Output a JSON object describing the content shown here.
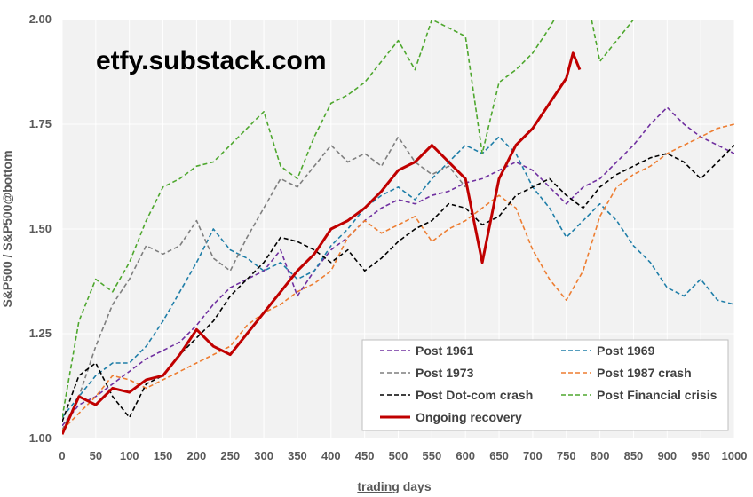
{
  "watermark": "etfy.substack.com",
  "chart_data": {
    "type": "line",
    "xlabel_prefix": "trading",
    "xlabel_suffix": " days",
    "ylabel": "S&P500 / S&P500@bottom",
    "xlim": [
      0,
      1000
    ],
    "ylim": [
      1.0,
      2.0
    ],
    "x_ticks": [
      0,
      50,
      100,
      150,
      200,
      250,
      300,
      350,
      400,
      450,
      500,
      550,
      600,
      650,
      700,
      750,
      800,
      850,
      900,
      950,
      1000
    ],
    "y_ticks": [
      "1.00",
      "1.25",
      "1.50",
      "1.75",
      "2.00"
    ],
    "grid": "horizontal",
    "background": "#f2f2f2",
    "legend_position": "bottom-right",
    "series": [
      {
        "name": "Post 1961",
        "color": "#7030a0",
        "style": "dashed",
        "width": 1.6,
        "x": [
          0,
          25,
          50,
          75,
          100,
          125,
          150,
          175,
          200,
          225,
          250,
          275,
          300,
          325,
          350,
          375,
          400,
          425,
          450,
          475,
          500,
          525,
          550,
          575,
          600,
          625,
          650,
          675,
          700,
          725,
          750,
          775,
          800,
          825,
          850,
          875,
          900,
          925,
          950,
          975,
          1000
        ],
        "y": [
          1.03,
          1.08,
          1.1,
          1.13,
          1.16,
          1.19,
          1.21,
          1.23,
          1.27,
          1.32,
          1.36,
          1.38,
          1.4,
          1.45,
          1.34,
          1.4,
          1.45,
          1.48,
          1.52,
          1.55,
          1.57,
          1.56,
          1.58,
          1.59,
          1.61,
          1.62,
          1.64,
          1.66,
          1.64,
          1.6,
          1.56,
          1.6,
          1.62,
          1.66,
          1.7,
          1.75,
          1.79,
          1.75,
          1.72,
          1.7,
          1.68
        ]
      },
      {
        "name": "Post 1969",
        "color": "#1f7ea8",
        "style": "dashed",
        "width": 1.6,
        "x": [
          0,
          25,
          50,
          75,
          100,
          125,
          150,
          175,
          200,
          225,
          250,
          275,
          300,
          325,
          350,
          375,
          400,
          425,
          450,
          475,
          500,
          525,
          550,
          575,
          600,
          625,
          650,
          675,
          700,
          725,
          750,
          775,
          800,
          825,
          850,
          875,
          900,
          925,
          950,
          975,
          1000
        ],
        "y": [
          1.05,
          1.1,
          1.15,
          1.18,
          1.18,
          1.22,
          1.28,
          1.35,
          1.42,
          1.5,
          1.45,
          1.43,
          1.4,
          1.42,
          1.38,
          1.4,
          1.46,
          1.5,
          1.55,
          1.58,
          1.6,
          1.57,
          1.62,
          1.66,
          1.7,
          1.68,
          1.72,
          1.68,
          1.6,
          1.55,
          1.48,
          1.52,
          1.56,
          1.52,
          1.46,
          1.42,
          1.36,
          1.34,
          1.38,
          1.33,
          1.32
        ]
      },
      {
        "name": "Post 1973",
        "color": "#7f7f7f",
        "style": "dashed",
        "width": 1.6,
        "x": [
          0,
          25,
          50,
          75,
          100,
          125,
          150,
          175,
          200,
          225,
          250,
          275,
          300,
          325,
          350,
          375,
          400,
          425,
          450,
          475,
          500,
          525,
          550,
          575,
          600
        ],
        "y": [
          1.02,
          1.1,
          1.22,
          1.32,
          1.38,
          1.46,
          1.44,
          1.46,
          1.52,
          1.43,
          1.4,
          1.48,
          1.55,
          1.62,
          1.6,
          1.65,
          1.7,
          1.66,
          1.68,
          1.65,
          1.72,
          1.66,
          1.63,
          1.65,
          1.6
        ]
      },
      {
        "name": "Post 1987 crash",
        "color": "#ed7d31",
        "style": "dashed",
        "width": 1.6,
        "x": [
          0,
          25,
          50,
          75,
          100,
          125,
          150,
          175,
          200,
          225,
          250,
          275,
          300,
          325,
          350,
          375,
          400,
          425,
          450,
          475,
          500,
          525,
          550,
          575,
          600,
          625,
          650,
          675,
          700,
          725,
          750,
          775,
          800,
          825,
          850,
          875,
          900,
          925,
          950,
          975,
          1000
        ],
        "y": [
          1.02,
          1.06,
          1.1,
          1.15,
          1.14,
          1.12,
          1.14,
          1.16,
          1.18,
          1.2,
          1.22,
          1.27,
          1.3,
          1.32,
          1.35,
          1.37,
          1.4,
          1.48,
          1.52,
          1.49,
          1.51,
          1.53,
          1.47,
          1.5,
          1.52,
          1.55,
          1.58,
          1.55,
          1.45,
          1.38,
          1.33,
          1.4,
          1.53,
          1.6,
          1.63,
          1.65,
          1.68,
          1.7,
          1.72,
          1.74,
          1.75
        ]
      },
      {
        "name": "Post Dot-com crash",
        "color": "#000000",
        "style": "dashed",
        "width": 1.6,
        "x": [
          0,
          25,
          50,
          75,
          100,
          125,
          150,
          175,
          200,
          225,
          250,
          275,
          300,
          325,
          350,
          375,
          400,
          425,
          450,
          475,
          500,
          525,
          550,
          575,
          600,
          625,
          650,
          675,
          700,
          725,
          750,
          775,
          800,
          825,
          850,
          875,
          900,
          925,
          950,
          975,
          1000
        ],
        "y": [
          1.04,
          1.15,
          1.18,
          1.1,
          1.05,
          1.13,
          1.15,
          1.2,
          1.24,
          1.28,
          1.34,
          1.38,
          1.42,
          1.48,
          1.47,
          1.45,
          1.42,
          1.45,
          1.4,
          1.43,
          1.47,
          1.5,
          1.52,
          1.56,
          1.55,
          1.51,
          1.53,
          1.58,
          1.6,
          1.62,
          1.58,
          1.55,
          1.6,
          1.63,
          1.65,
          1.67,
          1.68,
          1.66,
          1.62,
          1.66,
          1.7
        ]
      },
      {
        "name": "Post Financial crisis",
        "color": "#4ea72e",
        "style": "dashed",
        "width": 1.6,
        "x": [
          0,
          25,
          50,
          75,
          100,
          125,
          150,
          175,
          200,
          225,
          250,
          275,
          300,
          325,
          350,
          375,
          400,
          425,
          450,
          475,
          500,
          525,
          550,
          575,
          600,
          625,
          650,
          675,
          700,
          725,
          750,
          775,
          800,
          825,
          850
        ],
        "y": [
          1.05,
          1.28,
          1.38,
          1.35,
          1.42,
          1.52,
          1.6,
          1.62,
          1.65,
          1.66,
          1.7,
          1.74,
          1.78,
          1.65,
          1.62,
          1.72,
          1.8,
          1.82,
          1.85,
          1.9,
          1.95,
          1.88,
          2.0,
          1.98,
          1.96,
          1.68,
          1.85,
          1.88,
          1.92,
          1.98,
          2.05,
          2.1,
          1.9,
          1.95,
          2.0
        ]
      },
      {
        "name": "Ongoing recovery",
        "color": "#c00000",
        "style": "solid",
        "width": 3,
        "x": [
          0,
          25,
          50,
          75,
          100,
          125,
          150,
          175,
          200,
          225,
          250,
          275,
          300,
          325,
          350,
          375,
          400,
          425,
          450,
          475,
          500,
          525,
          550,
          575,
          600,
          625,
          650,
          675,
          700,
          725,
          750,
          760,
          770
        ],
        "y": [
          1.01,
          1.1,
          1.08,
          1.12,
          1.11,
          1.14,
          1.15,
          1.2,
          1.26,
          1.22,
          1.2,
          1.25,
          1.3,
          1.35,
          1.4,
          1.44,
          1.5,
          1.52,
          1.55,
          1.59,
          1.64,
          1.66,
          1.7,
          1.66,
          1.62,
          1.42,
          1.62,
          1.7,
          1.74,
          1.8,
          1.86,
          1.92,
          1.88
        ]
      }
    ]
  }
}
